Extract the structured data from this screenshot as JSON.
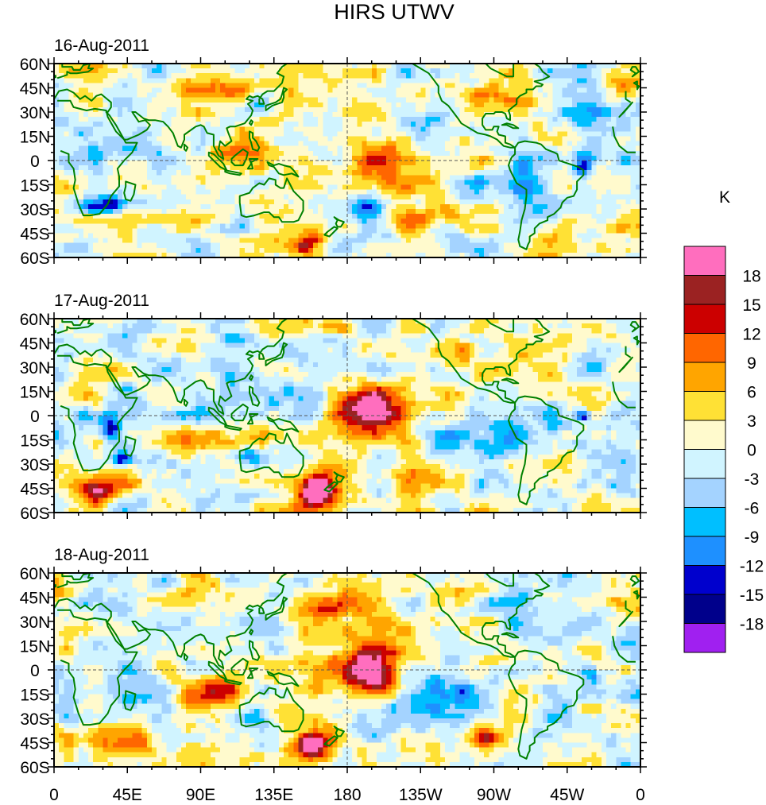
{
  "title": "HIRS UTWV",
  "unit": "K",
  "lat_labels": [
    "60N",
    "45N",
    "30N",
    "15N",
    "0",
    "15S",
    "30S",
    "45S",
    "60S"
  ],
  "lon_labels": [
    "0",
    "45E",
    "90E",
    "135E",
    "180",
    "135W",
    "90W",
    "45W",
    "0"
  ],
  "panels": [
    {
      "date": "16-Aug-2011",
      "anomalies": [
        {
          "lon": 195,
          "lat": 5,
          "rx": 14,
          "ry": 14,
          "v": 10
        },
        {
          "lon": 200,
          "lat": -20,
          "rx": 16,
          "ry": 10,
          "v": 6
        },
        {
          "lon": 155,
          "lat": -52,
          "rx": 8,
          "ry": 5,
          "v": 16
        },
        {
          "lon": 30,
          "lat": -27,
          "rx": 12,
          "ry": 4,
          "v": -14
        },
        {
          "lon": 325,
          "lat": -2,
          "rx": 4,
          "ry": 6,
          "v": -16
        },
        {
          "lon": 190,
          "lat": -27,
          "rx": 10,
          "ry": 6,
          "v": -11
        },
        {
          "lon": 255,
          "lat": -15,
          "rx": 10,
          "ry": 5,
          "v": -11
        },
        {
          "lon": 230,
          "lat": -35,
          "rx": 16,
          "ry": 5,
          "v": 8
        },
        {
          "lon": 260,
          "lat": 38,
          "rx": 18,
          "ry": 6,
          "v": 7
        },
        {
          "lon": 15,
          "lat": -40,
          "rx": 18,
          "ry": 6,
          "v": 6
        },
        {
          "lon": 120,
          "lat": 5,
          "rx": 15,
          "ry": 10,
          "v": 5
        },
        {
          "lon": 70,
          "lat": -30,
          "rx": 30,
          "ry": 6,
          "v": 5
        },
        {
          "lon": 125,
          "lat": 35,
          "rx": 6,
          "ry": 4,
          "v": -10
        },
        {
          "lon": 100,
          "lat": 45,
          "rx": 20,
          "ry": 6,
          "v": 5
        },
        {
          "lon": 290,
          "lat": -20,
          "rx": 12,
          "ry": 12,
          "v": -7
        },
        {
          "lon": 330,
          "lat": 30,
          "rx": 15,
          "ry": 8,
          "v": -5
        },
        {
          "lon": 345,
          "lat": 45,
          "rx": 10,
          "ry": 6,
          "v": 6
        },
        {
          "lon": 230,
          "lat": 20,
          "rx": 20,
          "ry": 8,
          "v": -5
        },
        {
          "lon": 50,
          "lat": 10,
          "rx": 12,
          "ry": 8,
          "v": -6
        }
      ]
    },
    {
      "date": "17-Aug-2011",
      "anomalies": [
        {
          "lon": 195,
          "lat": 5,
          "rx": 12,
          "ry": 10,
          "v": 15
        },
        {
          "lon": 205,
          "lat": -2,
          "rx": 20,
          "ry": 14,
          "v": 8
        },
        {
          "lon": 162,
          "lat": -47,
          "rx": 6,
          "ry": 6,
          "v": 20
        },
        {
          "lon": 160,
          "lat": -45,
          "rx": 14,
          "ry": 10,
          "v": 11
        },
        {
          "lon": 25,
          "lat": -45,
          "rx": 8,
          "ry": 5,
          "v": 14
        },
        {
          "lon": 20,
          "lat": -43,
          "rx": 16,
          "ry": 8,
          "v": 8
        },
        {
          "lon": 120,
          "lat": -25,
          "rx": 6,
          "ry": 3,
          "v": -14
        },
        {
          "lon": 42,
          "lat": -27,
          "rx": 4,
          "ry": 3,
          "v": -15
        },
        {
          "lon": 35,
          "lat": -8,
          "rx": 4,
          "ry": 5,
          "v": -13
        },
        {
          "lon": 325,
          "lat": 0,
          "rx": 3,
          "ry": 3,
          "v": -15
        },
        {
          "lon": 265,
          "lat": -15,
          "rx": 22,
          "ry": 7,
          "v": -8
        },
        {
          "lon": 100,
          "lat": -15,
          "rx": 20,
          "ry": 8,
          "v": 7
        },
        {
          "lon": 255,
          "lat": 40,
          "rx": 18,
          "ry": 6,
          "v": 6
        },
        {
          "lon": 220,
          "lat": -35,
          "rx": 15,
          "ry": 6,
          "v": 5
        },
        {
          "lon": 125,
          "lat": 45,
          "rx": 18,
          "ry": 6,
          "v": -6
        },
        {
          "lon": 300,
          "lat": 45,
          "rx": 15,
          "ry": 6,
          "v": 5
        },
        {
          "lon": 130,
          "lat": -50,
          "rx": 20,
          "ry": 5,
          "v": -7
        }
      ]
    },
    {
      "date": "18-Aug-2011",
      "anomalies": [
        {
          "lon": 192,
          "lat": 0,
          "rx": 10,
          "ry": 8,
          "v": 15
        },
        {
          "lon": 200,
          "lat": 5,
          "rx": 18,
          "ry": 16,
          "v": 10
        },
        {
          "lon": 158,
          "lat": -46,
          "rx": 5,
          "ry": 4,
          "v": 20
        },
        {
          "lon": 160,
          "lat": -45,
          "rx": 12,
          "ry": 8,
          "v": 13
        },
        {
          "lon": 265,
          "lat": -42,
          "rx": 6,
          "ry": 6,
          "v": 14
        },
        {
          "lon": 40,
          "lat": -45,
          "rx": 15,
          "ry": 8,
          "v": 9
        },
        {
          "lon": 100,
          "lat": -10,
          "rx": 15,
          "ry": 10,
          "v": 9
        },
        {
          "lon": 330,
          "lat": -2,
          "rx": 4,
          "ry": 4,
          "v": -12
        },
        {
          "lon": 245,
          "lat": -15,
          "rx": 15,
          "ry": 10,
          "v": -7
        },
        {
          "lon": 125,
          "lat": -30,
          "rx": 8,
          "ry": 4,
          "v": -11
        },
        {
          "lon": 200,
          "lat": -25,
          "rx": 20,
          "ry": 8,
          "v": -6
        },
        {
          "lon": 170,
          "lat": 40,
          "rx": 12,
          "ry": 5,
          "v": 9
        },
        {
          "lon": 55,
          "lat": -5,
          "rx": 6,
          "ry": 6,
          "v": -7
        },
        {
          "lon": 260,
          "lat": 50,
          "rx": 14,
          "ry": 4,
          "v": 5
        },
        {
          "lon": 310,
          "lat": 20,
          "rx": 14,
          "ry": 8,
          "v": -6
        },
        {
          "lon": 100,
          "lat": 50,
          "rx": 20,
          "ry": 6,
          "v": 5
        }
      ]
    }
  ],
  "colorbar": {
    "labels": [
      "18",
      "15",
      "12",
      "9",
      "6",
      "3",
      "0",
      "-3",
      "-6",
      "-9",
      "-12",
      "-15",
      "-18"
    ],
    "levels": [
      -18,
      -15,
      -12,
      -9,
      -6,
      -3,
      0,
      3,
      6,
      9,
      12,
      15,
      18
    ],
    "colors": [
      "#a020f0",
      "#00008b",
      "#0000cd",
      "#1e90ff",
      "#00bfff",
      "#a4d3ff",
      "#d0f4ff",
      "#fffacd",
      "#ffe135",
      "#ffa500",
      "#ff6600",
      "#cc0000",
      "#9b2222",
      "#ff6ebe"
    ]
  },
  "coastline_color": "#008000"
}
